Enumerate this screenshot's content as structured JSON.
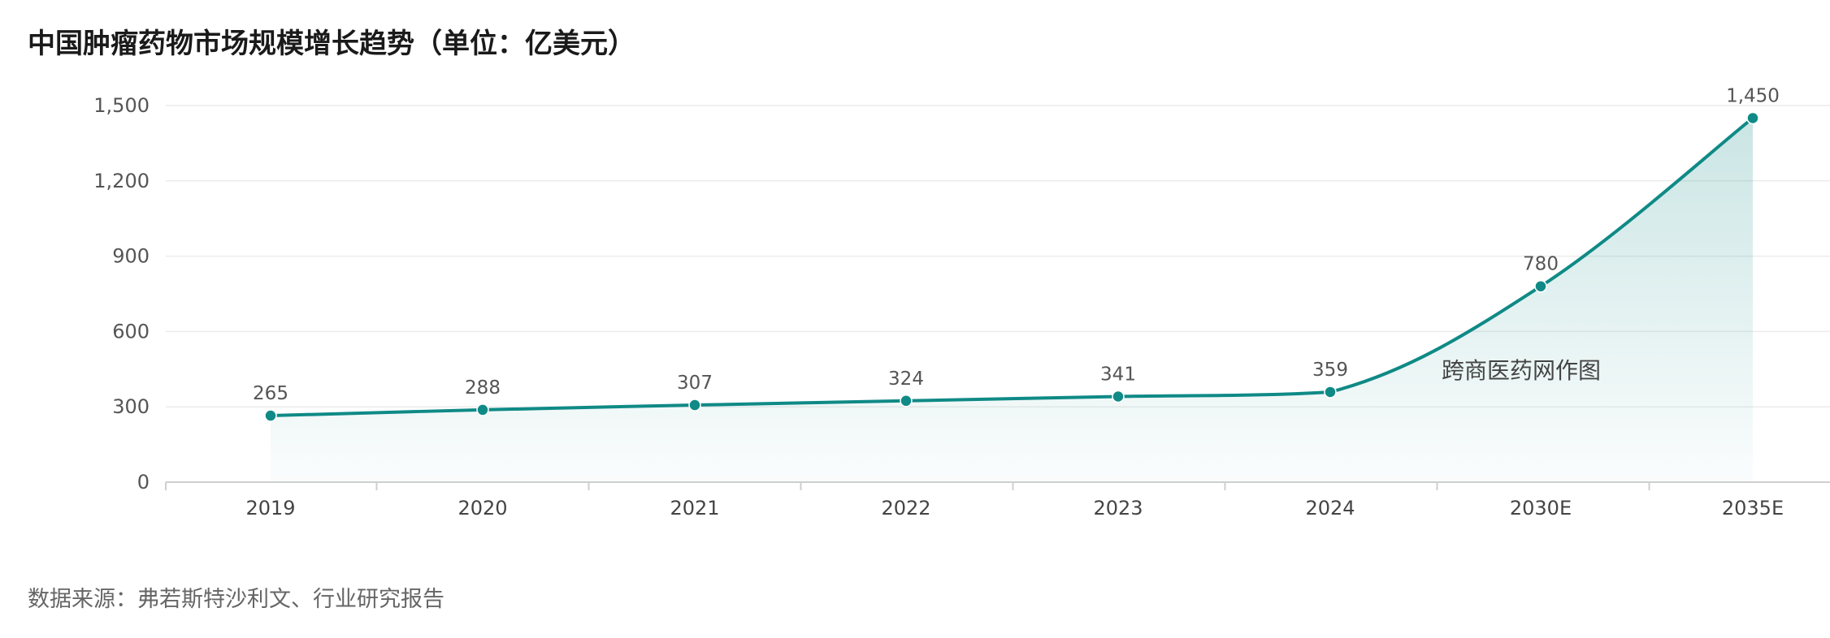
{
  "chart_data": {
    "type": "line",
    "title": "中国肿瘤药物市场规模增长趋势（单位：亿美元）",
    "categories": [
      "2019",
      "2020",
      "2021",
      "2022",
      "2023",
      "2024",
      "2030E",
      "2035E"
    ],
    "series": [
      {
        "values": [
          265,
          288,
          307,
          324,
          341,
          359,
          780,
          1450
        ]
      }
    ],
    "data_labels": [
      "265",
      "288",
      "307",
      "324",
      "341",
      "359",
      "780",
      "1,450"
    ],
    "y_ticks": [
      0,
      300,
      600,
      900,
      1200,
      1500
    ],
    "y_tick_labels": [
      "0",
      "300",
      "600",
      "900",
      "1,200",
      "1,500"
    ],
    "ylim": [
      0,
      1500
    ],
    "xlabel": "",
    "ylabel": "",
    "grid": true,
    "area_fill": true,
    "smooth": true,
    "line_color": "#0f8a86",
    "fill_color": "#0f8a86",
    "gridline_color": "#ececec",
    "annotation": "跨商医药网作图",
    "source": "数据来源：弗若斯特沙利文、行业研究报告"
  }
}
